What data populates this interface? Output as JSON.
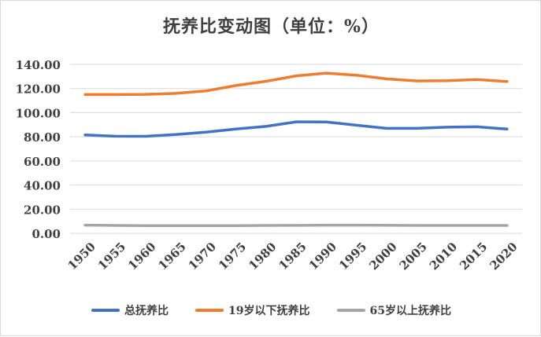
{
  "chart_data": {
    "type": "line",
    "title": "抚养比变动图（单位：%）",
    "x": [
      "1950",
      "1955",
      "1960",
      "1965",
      "1970",
      "1975",
      "1980",
      "1985",
      "1990",
      "1995",
      "2000",
      "2005",
      "2010",
      "2015",
      "2020"
    ],
    "ylim": [
      0,
      140
    ],
    "yticks": [
      "0.00",
      "20.00",
      "40.00",
      "60.00",
      "80.00",
      "100.00",
      "120.00",
      "140.00"
    ],
    "grid": true,
    "legend_position": "bottom",
    "series": [
      {
        "name": "总抚养比",
        "color": "#4472c4",
        "values": [
          81.5,
          80.5,
          80.4,
          81.9,
          83.8,
          86.5,
          88.6,
          92.4,
          92.3,
          89.6,
          87.0,
          87.0,
          88.0,
          88.3,
          86.4
        ]
      },
      {
        "name": "19岁以下抚养比",
        "color": "#ed7d31",
        "values": [
          115.0,
          115.0,
          115.2,
          116.0,
          118.0,
          122.5,
          126.0,
          130.5,
          132.8,
          131.0,
          128.0,
          126.3,
          126.5,
          127.5,
          125.8
        ]
      },
      {
        "name": "65岁以上抚养比",
        "color": "#a5a5a5",
        "values": [
          6.8,
          6.5,
          6.3,
          6.3,
          6.4,
          6.4,
          6.5,
          6.6,
          6.8,
          6.8,
          6.7,
          6.5,
          6.5,
          6.5,
          6.5
        ]
      }
    ]
  }
}
